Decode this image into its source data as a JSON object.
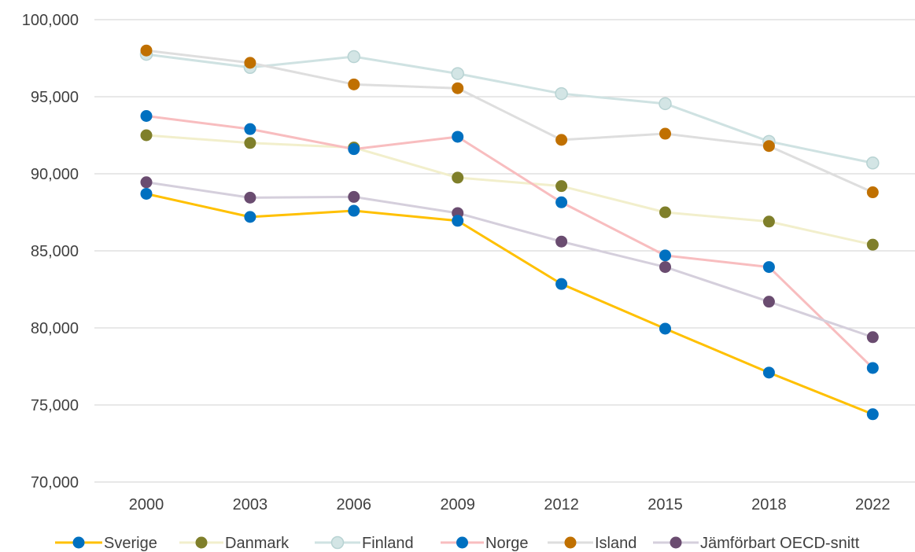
{
  "chart_data": {
    "type": "line",
    "categories": [
      "2000",
      "2003",
      "2006",
      "2009",
      "2012",
      "2015",
      "2018",
      "2022"
    ],
    "ylim": [
      70000,
      100000
    ],
    "yticks": [
      70000,
      75000,
      80000,
      85000,
      90000,
      95000,
      100000
    ],
    "ytick_labels": [
      "70,000",
      "75,000",
      "80,000",
      "85,000",
      "90,000",
      "95,000",
      "100,000"
    ],
    "grid": "horizontal",
    "legend": "bottom",
    "series": [
      {
        "name": "Sverige",
        "line_color": "#FFC000",
        "marker_color": "#0070C0",
        "values": [
          88700,
          87200,
          87600,
          86950,
          82850,
          79950,
          77100,
          74400
        ]
      },
      {
        "name": "Danmark",
        "line_color": "#F2EFCC",
        "marker_color": "#7F7F2A",
        "values": [
          92500,
          92000,
          91700,
          89750,
          89200,
          87500,
          86900,
          85400
        ]
      },
      {
        "name": "Finland",
        "line_color": "#CFE2E2",
        "marker_color": "#D3E5E5",
        "values": [
          97750,
          96900,
          97600,
          96500,
          95200,
          94550,
          92100,
          90700
        ]
      },
      {
        "name": "Norge",
        "line_color": "#F8BDBF",
        "marker_color": "#0070C0",
        "values": [
          93750,
          92900,
          91600,
          92400,
          88150,
          84700,
          83950,
          77400
        ]
      },
      {
        "name": "Island",
        "line_color": "#DEDEDE",
        "marker_color": "#C07000",
        "values": [
          98000,
          97200,
          95800,
          95550,
          92200,
          92600,
          91800,
          88800
        ]
      },
      {
        "name": "Jämförbart OECD-snitt",
        "line_color": "#D5CFDC",
        "marker_color": "#6A4C70",
        "values": [
          89450,
          88450,
          88500,
          87450,
          85600,
          83950,
          81700,
          79400
        ]
      }
    ]
  }
}
